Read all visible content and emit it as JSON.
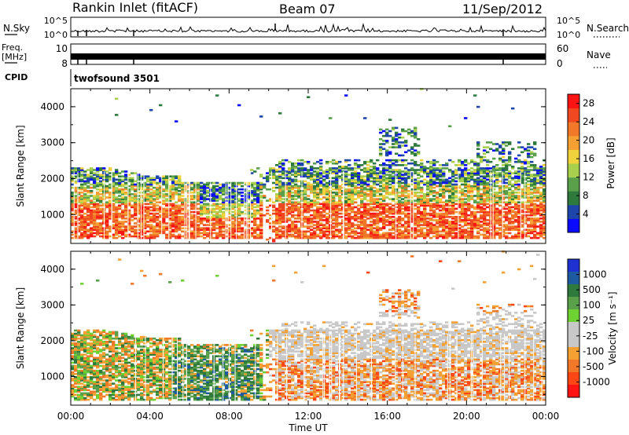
{
  "header": {
    "station": "Rankin Inlet (fitACF)",
    "beam": "Beam 07",
    "date": "11/Sep/2012"
  },
  "strips": {
    "nsky_label": "N.Sky",
    "nsky_ticks": [
      "10^5",
      "10^0"
    ],
    "nsearch_label": "N.Search",
    "nsearch_ticks": [
      "10^5",
      "10^0"
    ],
    "freq_label_line1": "Freq.",
    "freq_label_line2": "[MHz]",
    "freq_ticks": [
      "10",
      "8"
    ],
    "nave_label": "Nave",
    "nave_ticks": [
      "60",
      "0"
    ],
    "cpid_label": "CPID",
    "cpid_value": "twofsound 3501"
  },
  "colors": {
    "power_scale": [
      "#0a0aff",
      "#1e46aa",
      "#2e7a3c",
      "#5aa04a",
      "#a8d04c",
      "#f0d23c",
      "#f5a032",
      "#f07828",
      "#f04820",
      "#ff1414"
    ],
    "velocity_scale": [
      "#1e32d2",
      "#1e5aa0",
      "#2e7a3c",
      "#5aa04a",
      "#6ed232",
      "#c8c8c8",
      "#c8c8c8",
      "#f5a032",
      "#f07828",
      "#ff4614",
      "#ff1414"
    ]
  },
  "chart_data": [
    {
      "type": "heatmap",
      "panel": "power",
      "ylabel": "Slant Range [km]",
      "yticks": [
        "1000",
        "2000",
        "3000",
        "4000"
      ],
      "ylim": [
        200,
        4500
      ],
      "x_domain_hours": [
        0,
        24
      ],
      "colorbar_label": "Power [dB]",
      "colorbar_ticks": [
        "4",
        "8",
        "12",
        "16",
        "20",
        "24",
        "28"
      ],
      "colorbar_range": [
        0,
        30
      ],
      "main_echo_band_km": [
        400,
        2300
      ],
      "secondary_echo_km": [
        2800,
        3300
      ]
    },
    {
      "type": "heatmap",
      "panel": "velocity",
      "ylabel": "Slant Range [km]",
      "yticks": [
        "1000",
        "2000",
        "3000",
        "4000"
      ],
      "ylim": [
        200,
        4500
      ],
      "x_domain_hours": [
        0,
        24
      ],
      "xlabel": "Time UT",
      "xticks": [
        "00:00",
        "04:00",
        "08:00",
        "12:00",
        "16:00",
        "20:00",
        "00:00"
      ],
      "colorbar_label": "Velocity [m s⁻¹]",
      "colorbar_ticks": [
        "1000",
        "500",
        "100",
        "25",
        "-25",
        "-100",
        "-500",
        "-1000"
      ]
    }
  ]
}
